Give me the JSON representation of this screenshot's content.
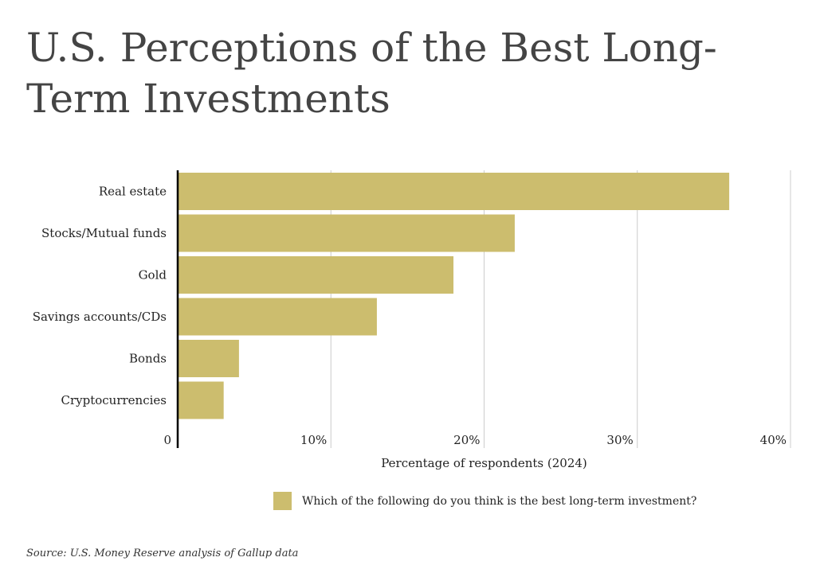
{
  "title": "U.S. Perceptions of the Best Long-Term Investments",
  "source": "Source: U.S. Money Reserve analysis of Gallup data",
  "colors": {
    "bar": "#ccbd6e",
    "grid": "#cccccc",
    "axis": "#000000"
  },
  "chart_data": {
    "type": "bar",
    "orientation": "horizontal",
    "categories": [
      "Real estate",
      "Stocks/Mutual funds",
      "Gold",
      "Savings accounts/CDs",
      "Bonds",
      "Cryptocurrencies"
    ],
    "series": [
      {
        "name": "Which of the following do you think is the best long-term investment?",
        "values": [
          36,
          22,
          18,
          13,
          4,
          3
        ]
      }
    ],
    "xlabel": "Percentage of respondents (2024)",
    "ylabel": "",
    "xlim": [
      0,
      40
    ],
    "xticks": [
      0,
      10,
      20,
      30,
      40
    ],
    "xtick_labels": [
      "0",
      "10%",
      "20%",
      "30%",
      "40%"
    ],
    "grid": true,
    "legend_position": "bottom"
  }
}
